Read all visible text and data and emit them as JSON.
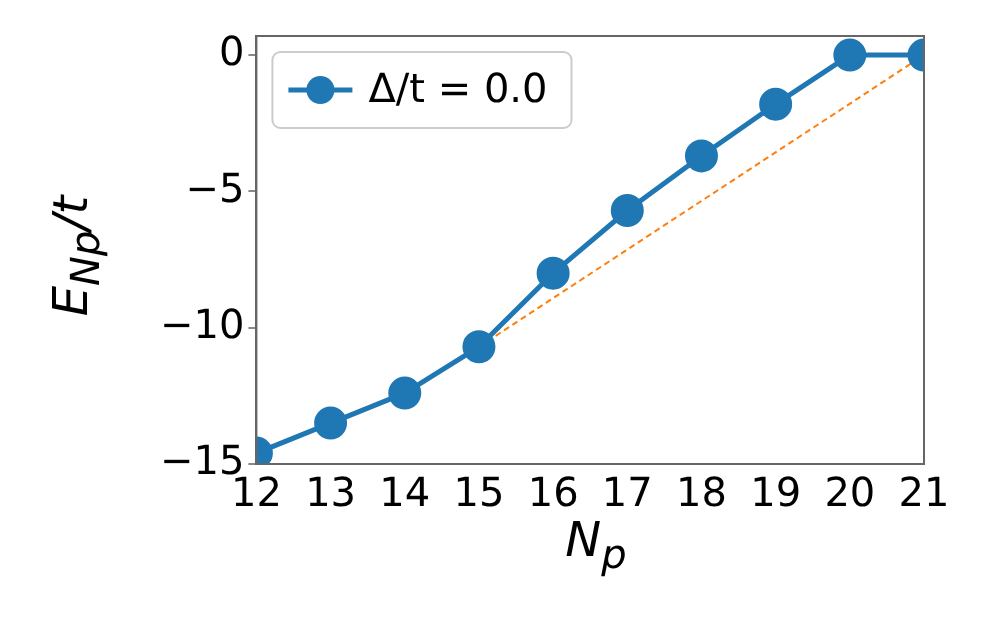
{
  "chart_data": {
    "type": "line",
    "xlabel": "N$_{p}$",
    "ylabel": "E$_{Np}$/t",
    "xlim": [
      12,
      21
    ],
    "xticks": [
      12,
      13,
      14,
      15,
      16,
      17,
      18,
      19,
      20,
      21
    ],
    "ylim": [
      -15,
      0.7
    ],
    "yticks": [
      -15,
      -10,
      -5,
      0
    ],
    "grid": false,
    "legend": "top left",
    "series": [
      {
        "name": "Δ/t = 0.0",
        "color": "#1f77b4",
        "marker": "circle",
        "line_style": "solid",
        "x": [
          12,
          13,
          14,
          15,
          16,
          17,
          18,
          19,
          20,
          21
        ],
        "values": [
          -14.6,
          -13.5,
          -12.4,
          -10.7,
          -8.0,
          -5.7,
          -3.7,
          -1.8,
          0,
          0
        ]
      },
      {
        "type": "line",
        "color": "#ff7f0e",
        "marker": "none",
        "line_style": "dashed",
        "x": [
          15,
          21
        ],
        "values": [
          -10.7,
          0
        ]
      }
    ]
  }
}
